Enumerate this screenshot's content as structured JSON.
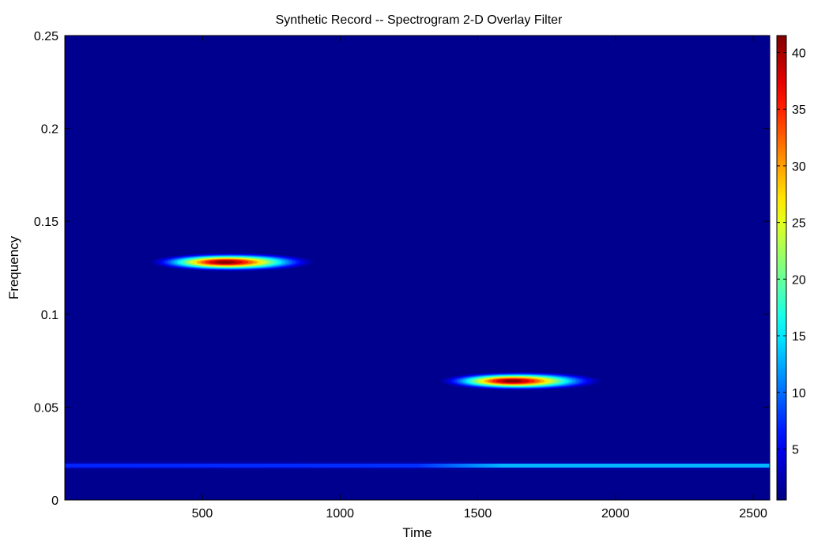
{
  "chart_data": {
    "type": "heatmap",
    "title": "Synthetic Record -- Spectrogram 2-D Overlay Filter",
    "xlabel": "Time",
    "ylabel": "Frequency",
    "xlim": [
      1,
      2560
    ],
    "ylim": [
      0,
      0.25
    ],
    "x_ticks": [
      500,
      1000,
      1500,
      2000,
      2500
    ],
    "x_tick_labels": [
      "500",
      "1000",
      "1500",
      "2000",
      "2500"
    ],
    "y_ticks": [
      0,
      0.05,
      0.1,
      0.15,
      0.2,
      0.25
    ],
    "y_tick_labels": [
      "0",
      "0.05",
      "0.1",
      "0.15",
      "0.2",
      "0.25"
    ],
    "colormap": "jet",
    "clim": [
      0.5,
      41.5
    ],
    "colorbar_ticks": [
      5,
      10,
      15,
      20,
      25,
      30,
      35,
      40
    ],
    "colorbar_tick_labels": [
      "5",
      "10",
      "15",
      "20",
      "25",
      "30",
      "35",
      "40"
    ],
    "background_value": 1,
    "features": [
      {
        "kind": "blob",
        "time_center": 580,
        "time_start": 320,
        "time_end": 950,
        "frequency": 0.128,
        "peak_value": 41
      },
      {
        "kind": "blob",
        "time_center": 1620,
        "time_start": 1380,
        "time_end": 2000,
        "frequency": 0.064,
        "peak_value": 41
      },
      {
        "kind": "band",
        "time_start": 1,
        "time_end": 2560,
        "frequency": 0.0185,
        "value_start": 7,
        "value_end": 13
      }
    ]
  }
}
